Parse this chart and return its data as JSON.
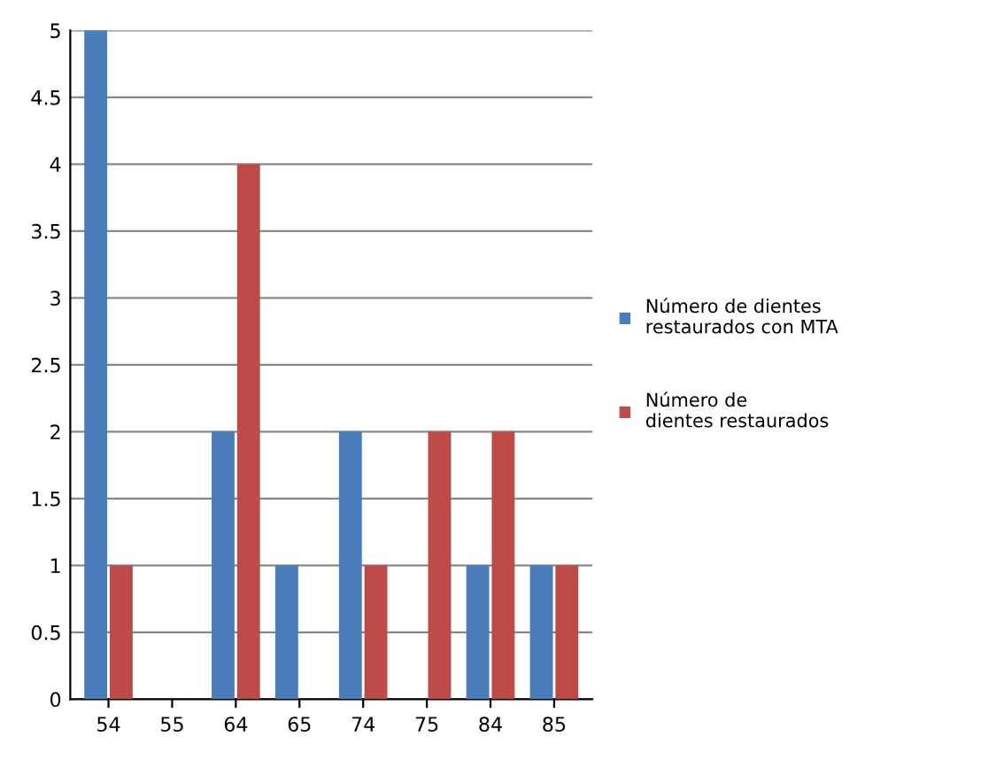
{
  "chart_data": {
    "type": "bar",
    "categories": [
      "54",
      "55",
      "64",
      "65",
      "74",
      "75",
      "84",
      "85"
    ],
    "series": [
      {
        "name": "Número de dientes restaurados con MTA",
        "color": "#4a7ebb",
        "values": [
          5,
          0,
          2,
          1,
          2,
          0,
          1,
          1
        ]
      },
      {
        "name": "Número de dientes restaurados",
        "color": "#be4b48",
        "values": [
          1,
          0,
          4,
          0,
          1,
          2,
          2,
          1
        ]
      }
    ],
    "ylim": [
      0,
      5
    ],
    "yticks": [
      0,
      0.5,
      1,
      1.5,
      2,
      2.5,
      3,
      3.5,
      4,
      4.5,
      5
    ],
    "grid": "y",
    "legend": "right"
  }
}
